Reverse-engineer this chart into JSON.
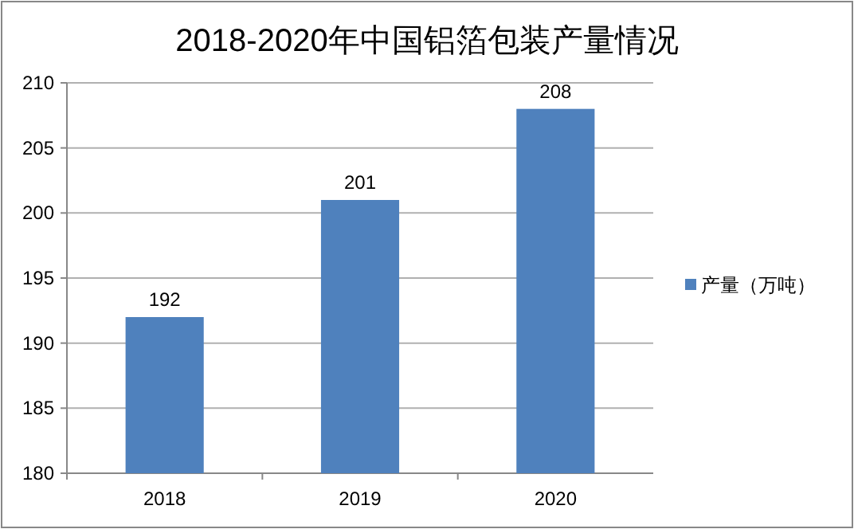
{
  "chart_data": {
    "type": "bar",
    "title": "2018-2020年中国铝箔包装产量情况",
    "categories": [
      "2018",
      "2019",
      "2020"
    ],
    "series": [
      {
        "name": "产量（万吨）",
        "color": "#4f81bd",
        "values": [
          192,
          201,
          208
        ]
      }
    ],
    "ylim": [
      180,
      210
    ],
    "yticks": [
      180,
      185,
      190,
      195,
      200,
      205,
      210
    ],
    "grid": "y",
    "legend": "right",
    "data_labels": true
  }
}
